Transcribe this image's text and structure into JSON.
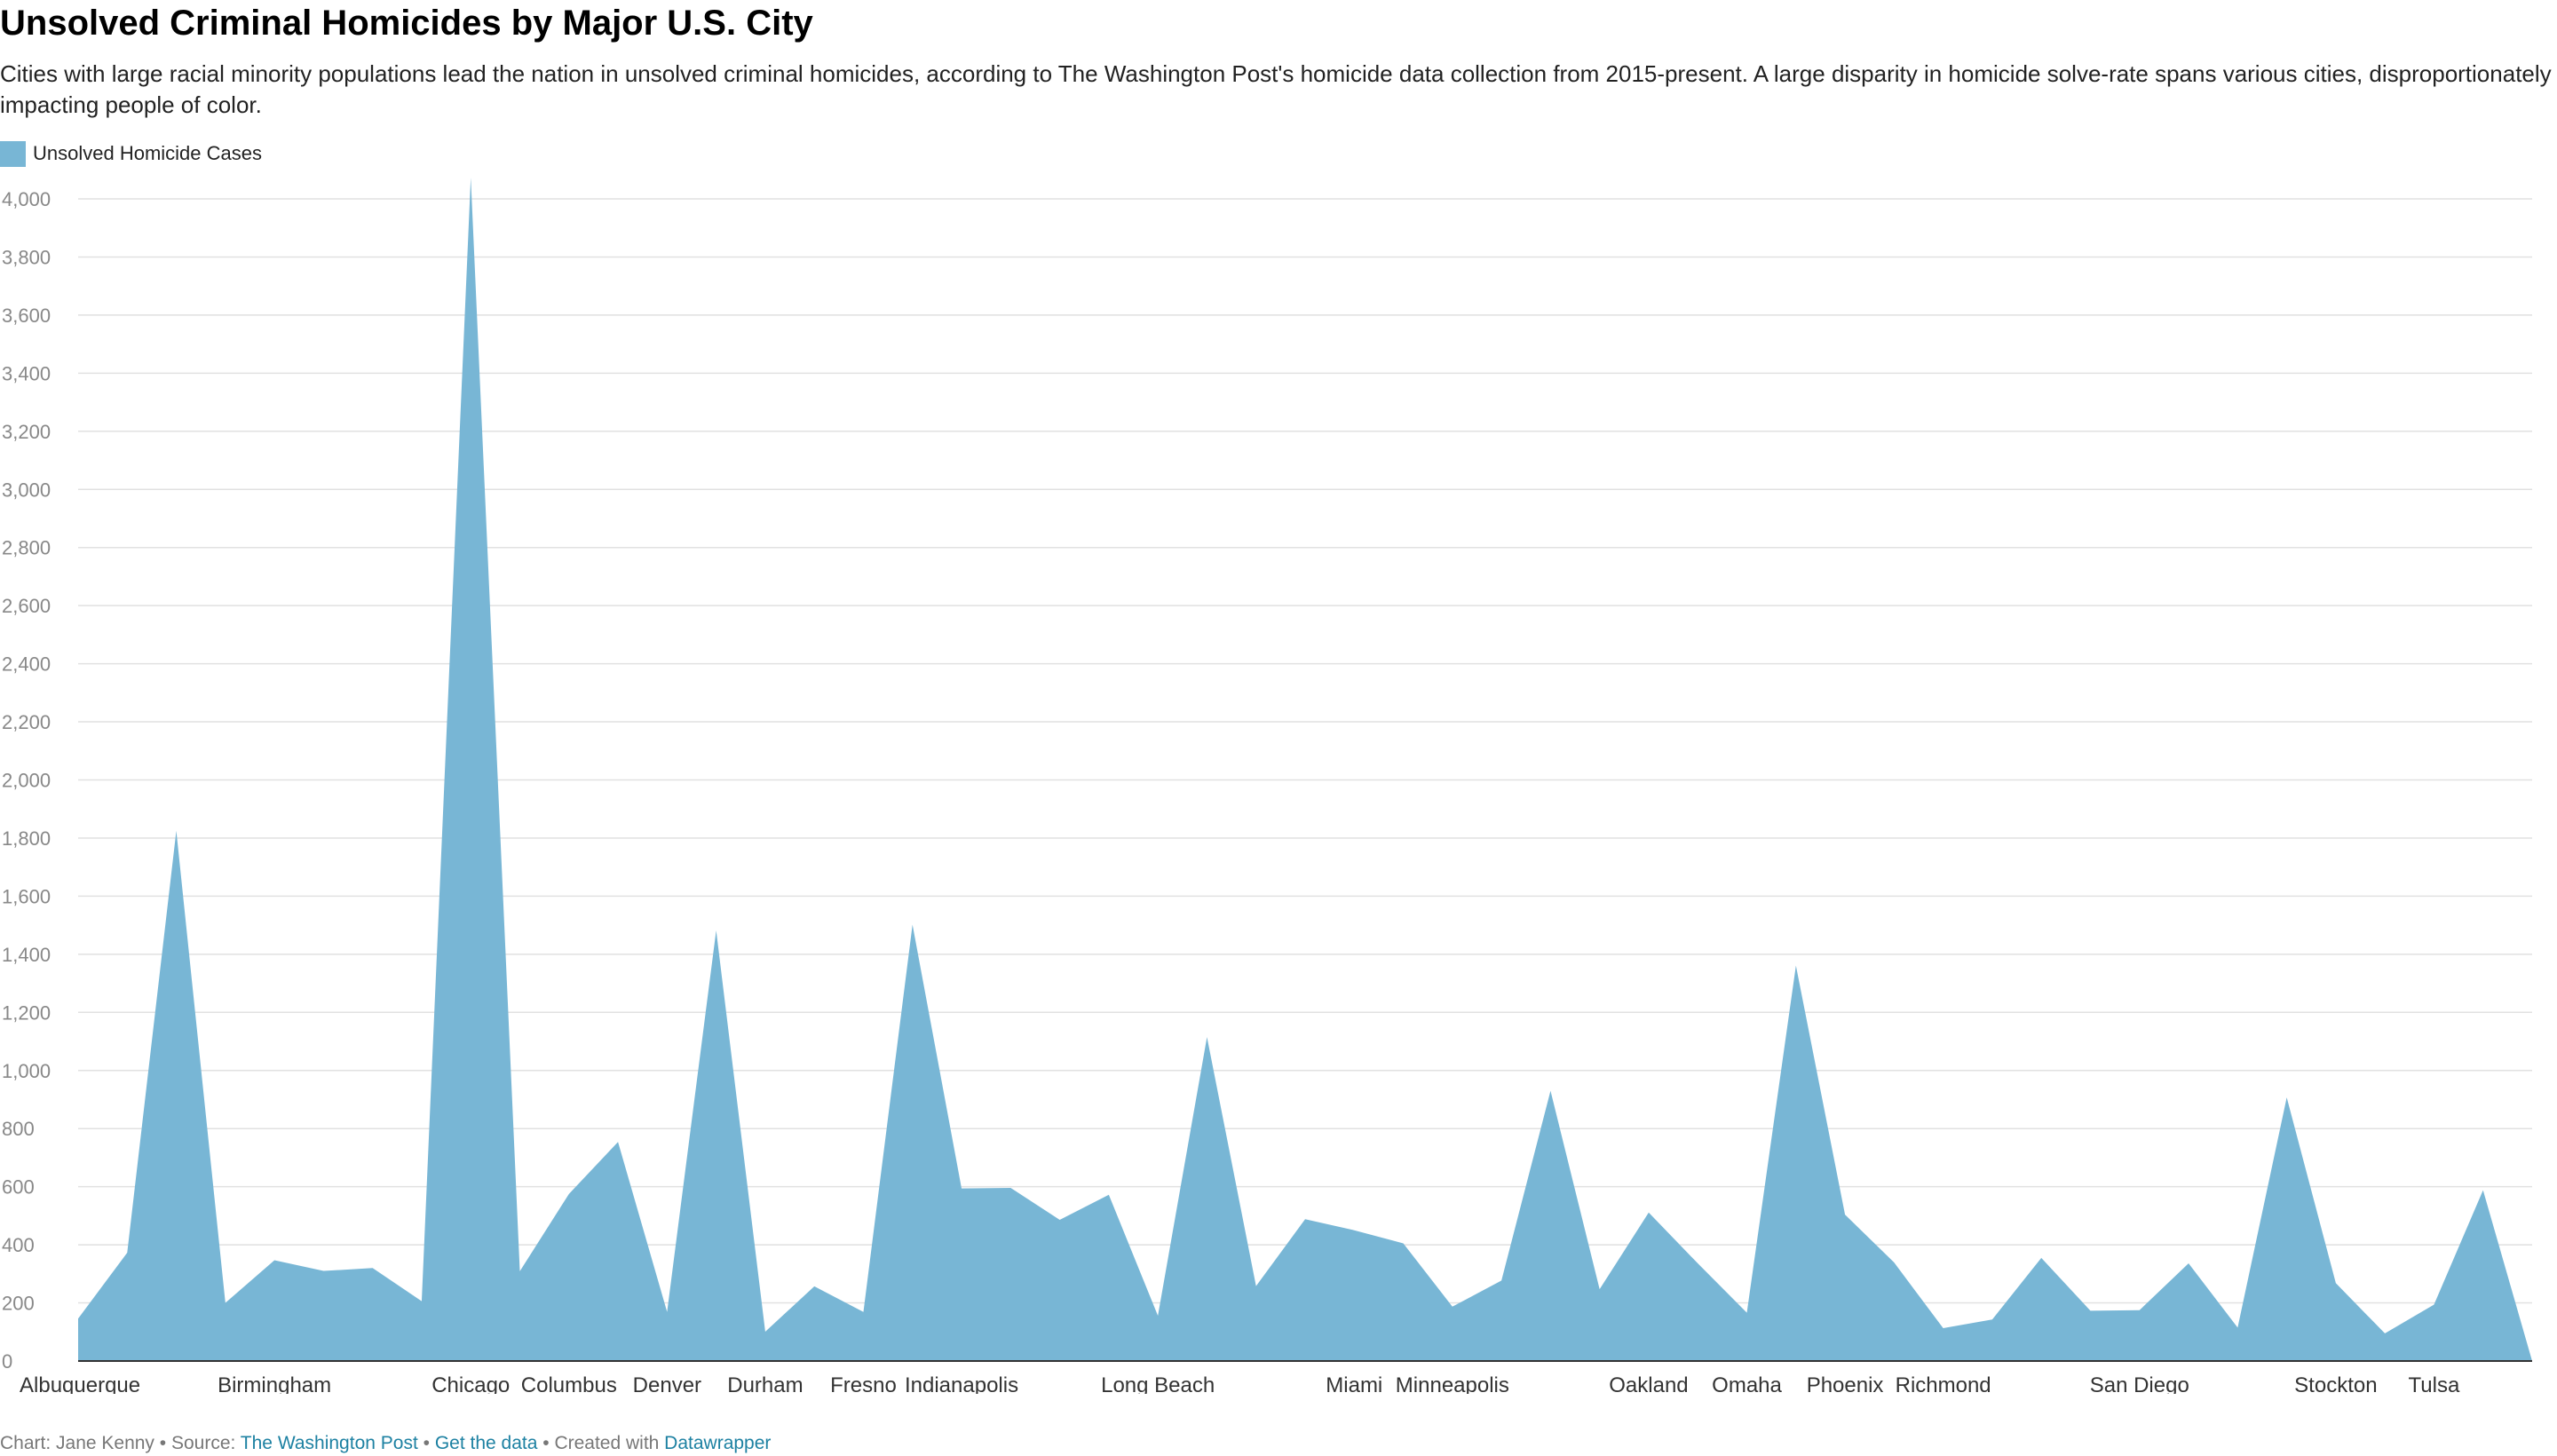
{
  "title": "Unsolved Criminal Homicides by Major U.S. City",
  "subtitle": "Cities with large racial minority populations lead the nation in unsolved criminal homicides, according to The Washington Post's homicide data collection from 2015-present. A large disparity in homicide solve-rate spans various cities, disproportionately impacting people of color.",
  "legend": {
    "label": "Unsolved Homicide Cases"
  },
  "colors": {
    "area": "#78b6d5",
    "grid": "#e1e1e1",
    "axis": "#333333",
    "tick_text": "#888888",
    "link": "#1d81a2"
  },
  "footer": {
    "chart_prefix": "Chart: Jane Kenny • Source: ",
    "source_link": "The Washington Post",
    "sep1": " • ",
    "data_link": "Get the data",
    "sep2": " • Created with ",
    "tool_link": "Datawrapper"
  },
  "chart_data": {
    "type": "area",
    "title": "Unsolved Criminal Homicides by Major U.S. City",
    "xlabel": "",
    "ylabel": "",
    "ylim": [
      0,
      4000
    ],
    "yticks": [
      0,
      200,
      400,
      600,
      800,
      1000,
      1200,
      1400,
      1600,
      1800,
      2000,
      2200,
      2400,
      2600,
      2800,
      3000,
      3200,
      3400,
      3600,
      3800,
      4000
    ],
    "grid": true,
    "legend_position": "top-left",
    "labeled_categories": [
      {
        "index": 0,
        "label": "Albuquerque"
      },
      {
        "index": 4,
        "label": "Birmingham"
      },
      {
        "index": 8,
        "label": "Chicago"
      },
      {
        "index": 10,
        "label": "Columbus"
      },
      {
        "index": 12,
        "label": "Denver"
      },
      {
        "index": 14,
        "label": "Durham"
      },
      {
        "index": 16,
        "label": "Fresno"
      },
      {
        "index": 18,
        "label": "Indianapolis"
      },
      {
        "index": 22,
        "label": "Long Beach"
      },
      {
        "index": 26,
        "label": "Miami"
      },
      {
        "index": 28,
        "label": "Minneapolis"
      },
      {
        "index": 32,
        "label": "Oakland"
      },
      {
        "index": 34,
        "label": "Omaha"
      },
      {
        "index": 36,
        "label": "Phoenix"
      },
      {
        "index": 38,
        "label": "Richmond"
      },
      {
        "index": 42,
        "label": "San Diego"
      },
      {
        "index": 46,
        "label": "Stockton"
      },
      {
        "index": 48,
        "label": "Tulsa"
      }
    ],
    "series": [
      {
        "name": "Unsolved Homicide Cases",
        "values": [
          146,
          373,
          1825,
          200,
          347,
          310,
          320,
          206,
          4073,
          309,
          575,
          754,
          169,
          1482,
          101,
          257,
          169,
          1502,
          594,
          596,
          486,
          572,
          156,
          1115,
          258,
          488,
          450,
          405,
          187,
          277,
          930,
          247,
          511,
          336,
          166,
          1361,
          504,
          339,
          113,
          143,
          355,
          173,
          175,
          336,
          115,
          907,
          268,
          95,
          194,
          588,
          0
        ]
      }
    ]
  }
}
